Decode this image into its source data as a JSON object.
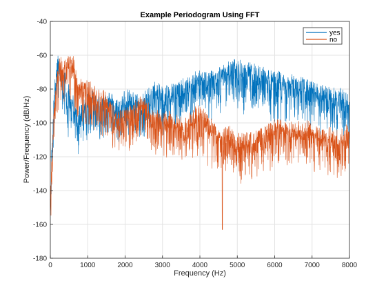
{
  "chart_data": {
    "type": "line",
    "title": "Example Periodogram Using FFT",
    "xlabel": "Frequency (Hz)",
    "ylabel": "Power/Frequency (dB/Hz)",
    "xlim": [
      0,
      8000
    ],
    "ylim": [
      -180,
      -40
    ],
    "xticks": [
      0,
      1000,
      2000,
      3000,
      4000,
      5000,
      6000,
      7000,
      8000
    ],
    "yticks": [
      -180,
      -160,
      -140,
      -120,
      -100,
      -80,
      -60,
      -40
    ],
    "grid": true,
    "legend_placement": "top-right",
    "series": [
      {
        "name": "yes",
        "color": "#0072BD",
        "x": [
          0,
          50,
          100,
          150,
          200,
          250,
          300,
          350,
          400,
          450,
          500,
          550,
          600,
          650,
          700,
          750,
          800,
          900,
          1000,
          1100,
          1200,
          1300,
          1400,
          1500,
          1600,
          1700,
          1800,
          1900,
          2000,
          2200,
          2400,
          2600,
          2800,
          3000,
          3200,
          3400,
          3600,
          3800,
          4000,
          4200,
          4400,
          4600,
          4800,
          5000,
          5200,
          5400,
          5600,
          5800,
          6000,
          6200,
          6400,
          6600,
          6800,
          7000,
          7200,
          7400,
          7600,
          7800,
          8000
        ],
        "values": [
          -135,
          -112,
          -82,
          -72,
          -62,
          -70,
          -68,
          -80,
          -72,
          -88,
          -80,
          -90,
          -85,
          -92,
          -88,
          -96,
          -92,
          -90,
          -86,
          -84,
          -88,
          -86,
          -88,
          -84,
          -86,
          -88,
          -90,
          -88,
          -84,
          -86,
          -88,
          -84,
          -80,
          -82,
          -80,
          -80,
          -78,
          -76,
          -72,
          -74,
          -72,
          -70,
          -68,
          -66,
          -70,
          -68,
          -70,
          -72,
          -74,
          -74,
          -76,
          -76,
          -78,
          -80,
          -82,
          -82,
          -84,
          -84,
          -88
        ]
      },
      {
        "name": "no",
        "color": "#D95319",
        "x": [
          0,
          50,
          100,
          150,
          200,
          250,
          300,
          350,
          400,
          450,
          500,
          550,
          600,
          650,
          700,
          750,
          800,
          900,
          1000,
          1100,
          1200,
          1300,
          1400,
          1500,
          1600,
          1700,
          1800,
          1900,
          2000,
          2200,
          2400,
          2600,
          2800,
          3000,
          3200,
          3400,
          3600,
          3800,
          4000,
          4200,
          4400,
          4600,
          4800,
          5000,
          5200,
          5400,
          5600,
          5800,
          6000,
          6200,
          6400,
          6600,
          6800,
          7000,
          7200,
          7400,
          7600,
          7800,
          8000
        ],
        "values": [
          -140,
          -118,
          -95,
          -80,
          -72,
          -66,
          -64,
          -68,
          -66,
          -66,
          -64,
          -62,
          -64,
          -68,
          -72,
          -76,
          -76,
          -78,
          -80,
          -80,
          -82,
          -84,
          -84,
          -86,
          -90,
          -94,
          -98,
          -96,
          -94,
          -92,
          -88,
          -92,
          -98,
          -96,
          -98,
          -100,
          -102,
          -96,
          -92,
          -100,
          -104,
          -108,
          -106,
          -110,
          -110,
          -110,
          -108,
          -106,
          -102,
          -102,
          -104,
          -104,
          -102,
          -104,
          -106,
          -106,
          -108,
          -108,
          -104
        ]
      }
    ]
  }
}
